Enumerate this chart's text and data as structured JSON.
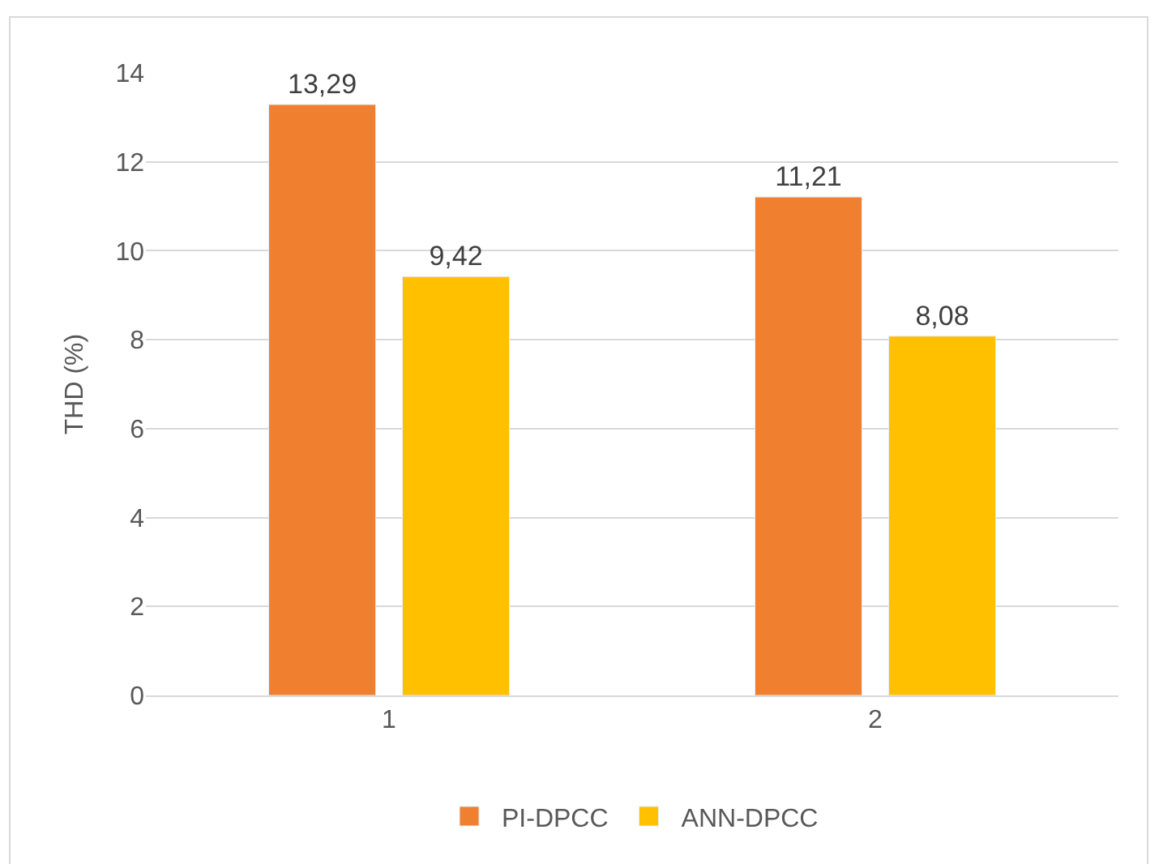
{
  "chart_data": {
    "type": "bar",
    "ylabel": "THD (%)",
    "categories": [
      "1",
      "2"
    ],
    "series": [
      {
        "name": "PI-DPCC",
        "color": "#f07f30",
        "values": [
          13.29,
          11.21
        ],
        "value_labels": [
          "13,29",
          "11,21"
        ]
      },
      {
        "name": "ANN-DPCC",
        "color": "#ffc000",
        "values": [
          9.42,
          8.08
        ],
        "value_labels": [
          "9,42",
          "8,08"
        ]
      }
    ],
    "ylim": [
      0,
      14
    ],
    "yticks": [
      0,
      2,
      4,
      6,
      8,
      10,
      12,
      14
    ],
    "grid": "y",
    "legend": "bottom"
  }
}
